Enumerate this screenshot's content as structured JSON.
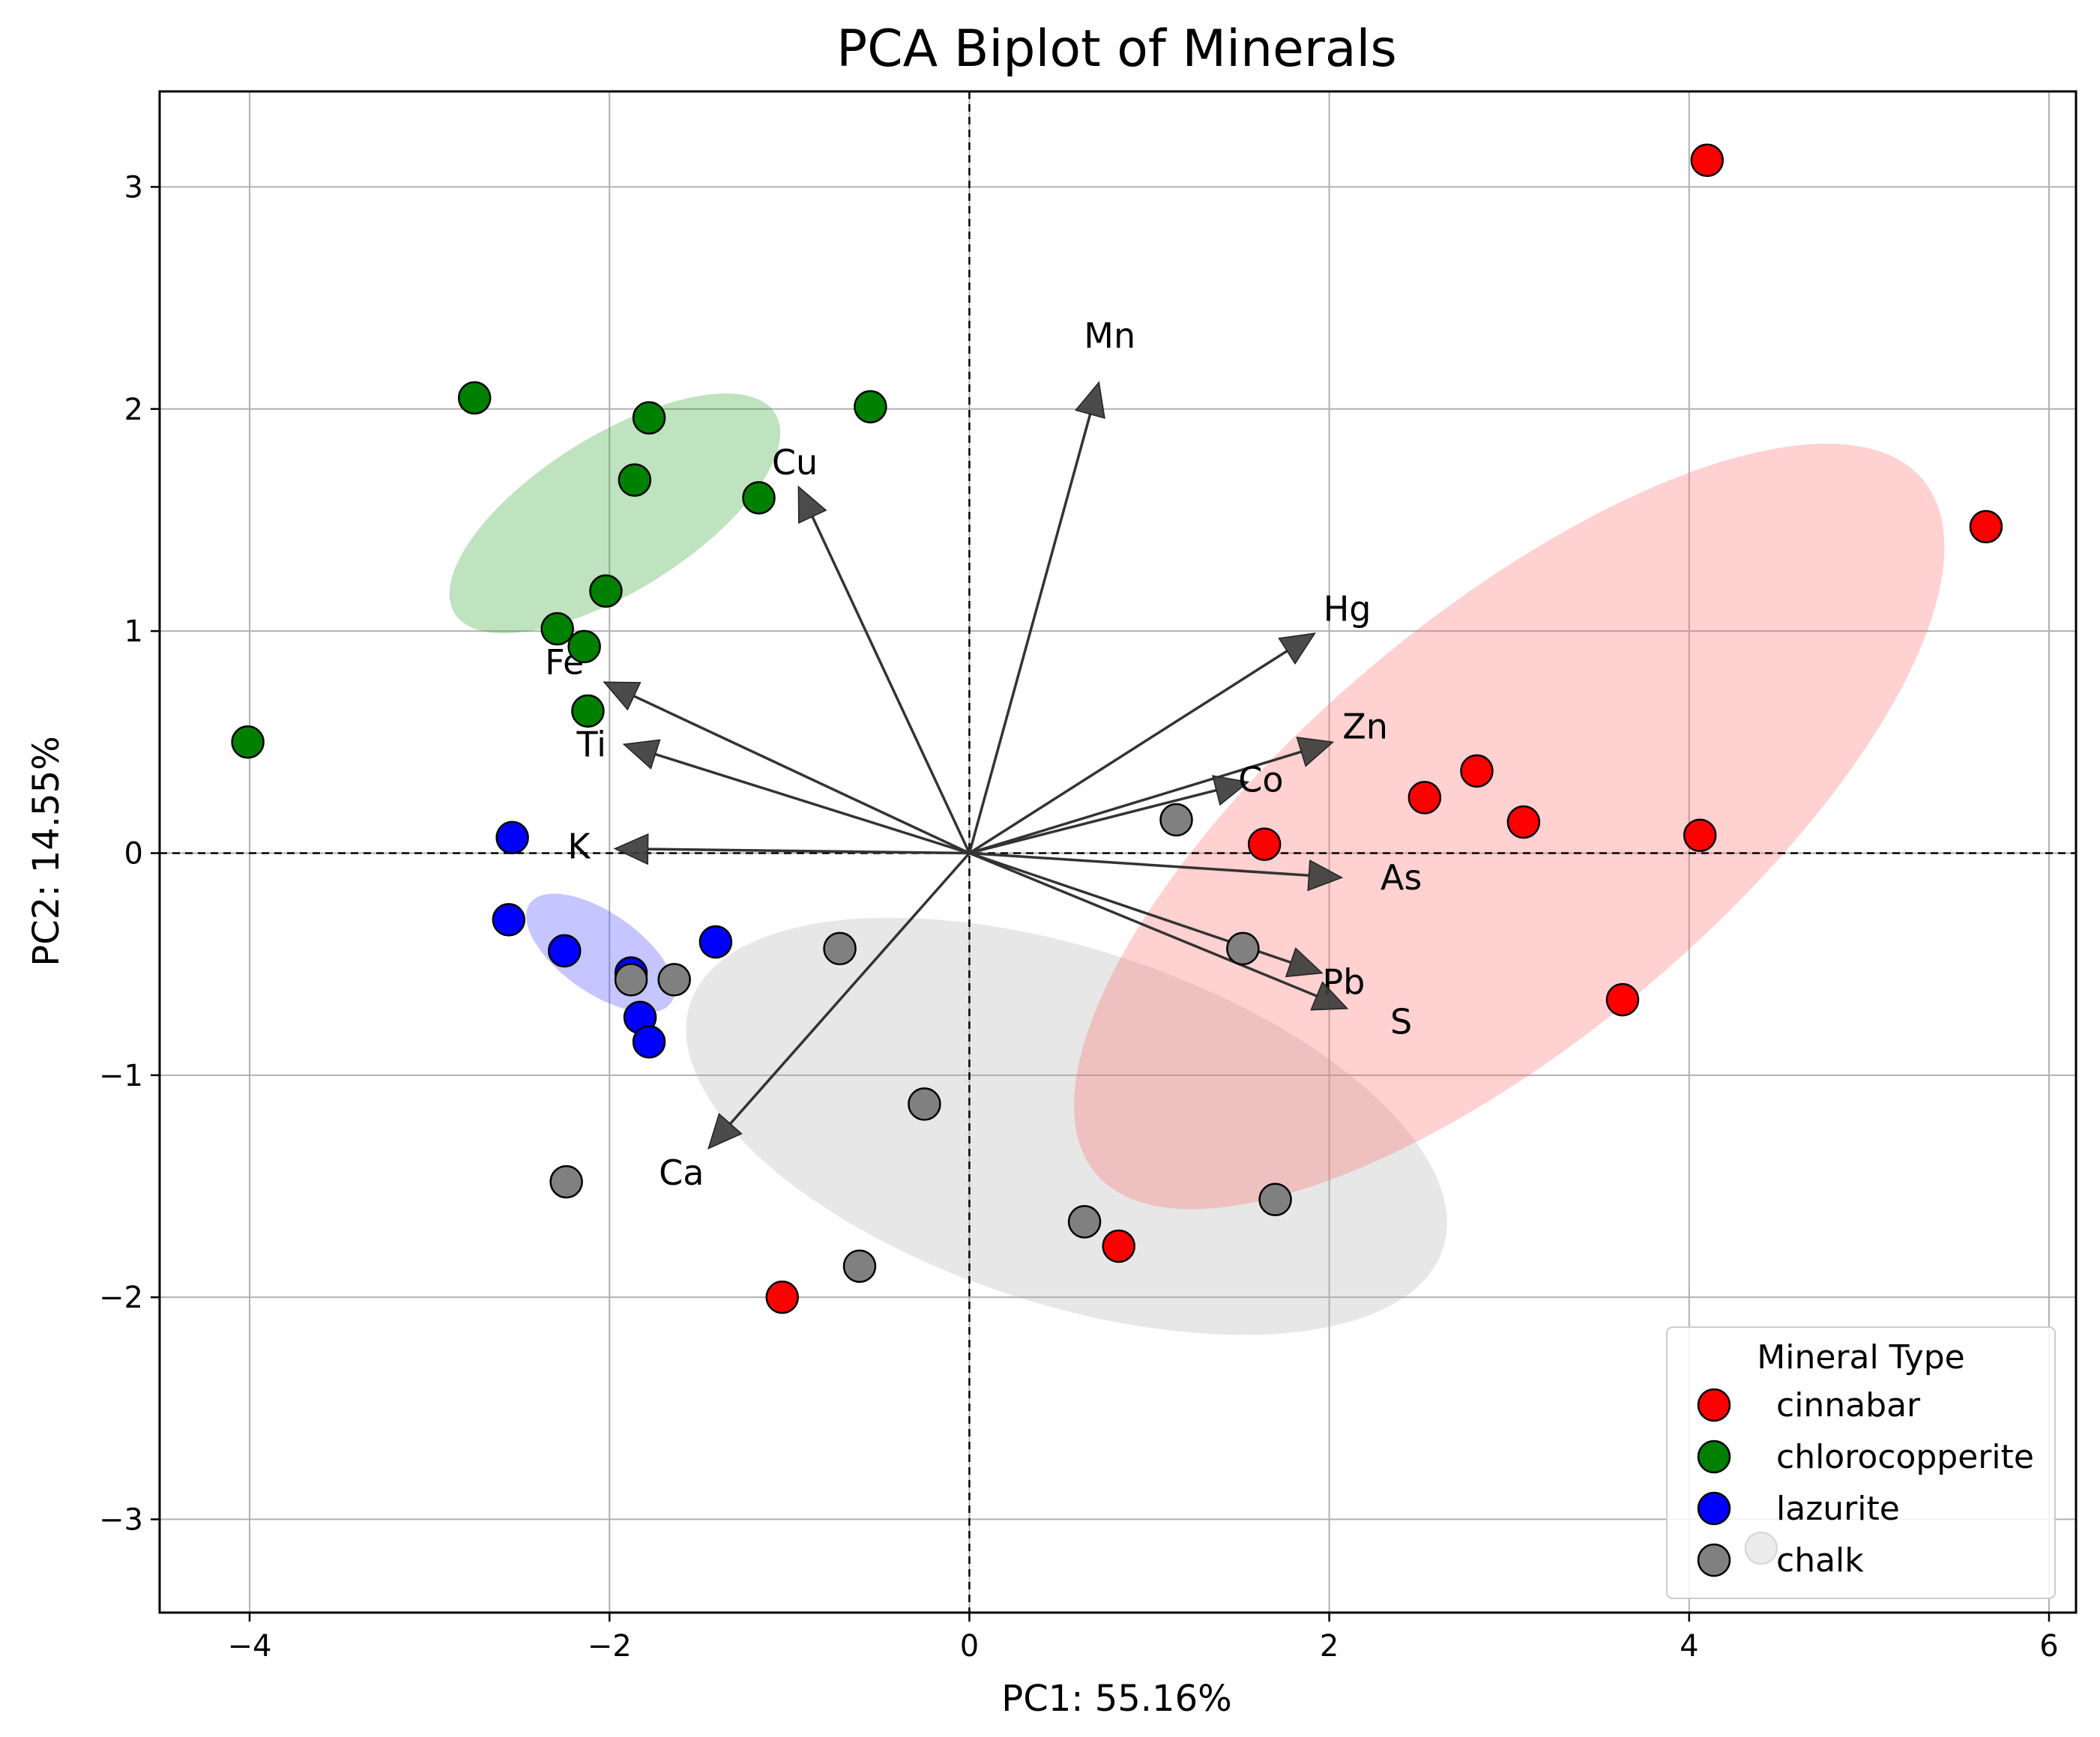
{
  "chart_data": {
    "type": "scatter",
    "title": "PCA Biplot of Minerals",
    "xlabel": "PC1: 55.16%",
    "ylabel": "PC2: 14.55%",
    "xlim": [
      -4.5,
      6.15
    ],
    "ylim": [
      -3.42,
      3.43
    ],
    "xticks": [
      -4,
      -2,
      0,
      2,
      4,
      6
    ],
    "yticks": [
      -3,
      -2,
      -1,
      0,
      1,
      2,
      3
    ],
    "xtick_labels": [
      "−4",
      "−2",
      "0",
      "2",
      "4",
      "6"
    ],
    "ytick_labels": [
      "−3",
      "−2",
      "−1",
      "0",
      "1",
      "2",
      "3"
    ],
    "grid": true,
    "legend": {
      "title": "Mineral Type",
      "position": "bottom-right",
      "entries": [
        "cinnabar",
        "chlorocopperite",
        "lazurite",
        "chalk"
      ]
    },
    "series": [
      {
        "name": "cinnabar",
        "color": "#ff0000",
        "points": [
          [
            4.1,
            3.12
          ],
          [
            5.65,
            1.47
          ],
          [
            2.82,
            0.37
          ],
          [
            2.53,
            0.25
          ],
          [
            3.08,
            0.14
          ],
          [
            4.06,
            0.08
          ],
          [
            1.64,
            0.04
          ],
          [
            3.63,
            -0.66
          ],
          [
            0.83,
            -1.77
          ],
          [
            -1.04,
            -2.0
          ]
        ]
      },
      {
        "name": "chlorocopperite",
        "color": "#008000",
        "points": [
          [
            -2.75,
            2.05
          ],
          [
            -1.78,
            1.96
          ],
          [
            -0.55,
            2.01
          ],
          [
            -1.86,
            1.68
          ],
          [
            -1.17,
            1.6
          ],
          [
            -2.02,
            1.18
          ],
          [
            -2.29,
            1.01
          ],
          [
            -2.14,
            0.93
          ],
          [
            -2.12,
            0.64
          ],
          [
            -4.01,
            0.5
          ]
        ]
      },
      {
        "name": "lazurite",
        "color": "#0000ff",
        "points": [
          [
            -2.54,
            0.07
          ],
          [
            -2.56,
            -0.3
          ],
          [
            -2.25,
            -0.44
          ],
          [
            -1.88,
            -0.54
          ],
          [
            -1.41,
            -0.4
          ],
          [
            -1.83,
            -0.74
          ],
          [
            -1.78,
            -0.85
          ]
        ]
      },
      {
        "name": "chalk",
        "color": "#808080",
        "points": [
          [
            1.15,
            0.15
          ],
          [
            1.52,
            -0.43
          ],
          [
            -0.72,
            -0.43
          ],
          [
            -1.88,
            -0.57
          ],
          [
            -1.64,
            -0.57
          ],
          [
            -0.25,
            -1.13
          ],
          [
            -2.24,
            -1.48
          ],
          [
            0.64,
            -1.66
          ],
          [
            1.7,
            -1.56
          ],
          [
            -0.61,
            -1.86
          ],
          [
            4.4,
            -3.13
          ]
        ]
      }
    ],
    "ellipses": [
      {
        "group": "chlorocopperite",
        "color": "#2ca02c",
        "center": [
          -1.97,
          1.53
        ],
        "semi_axes": [
          1.05,
          0.35
        ],
        "angle_deg": 32
      },
      {
        "group": "lazurite",
        "color": "#4040ff",
        "center": [
          -2.05,
          -0.45
        ],
        "semi_axes": [
          0.48,
          0.18
        ],
        "angle_deg": -35
      },
      {
        "group": "chalk",
        "color": "#b0b0b0",
        "center": [
          0.54,
          -1.23
        ],
        "semi_axes": [
          2.2,
          0.8
        ],
        "angle_deg": -18
      },
      {
        "group": "cinnabar",
        "color": "#ff6666",
        "center": [
          3.0,
          0.12
        ],
        "semi_axes": [
          3.0,
          0.95
        ],
        "angle_deg": 40
      }
    ],
    "loadings": [
      {
        "label": "Mn",
        "x": 0.72,
        "y": 2.12,
        "label_x": 0.78,
        "label_y": 2.33
      },
      {
        "label": "Cu",
        "x": -0.95,
        "y": 1.65,
        "label_x": -0.97,
        "label_y": 1.76
      },
      {
        "label": "Hg",
        "x": 1.92,
        "y": 0.99,
        "label_x": 2.1,
        "label_y": 1.1
      },
      {
        "label": "Zn",
        "x": 2.02,
        "y": 0.5,
        "label_x": 2.2,
        "label_y": 0.57
      },
      {
        "label": "Co",
        "x": 1.55,
        "y": 0.32,
        "label_x": 1.62,
        "label_y": 0.33
      },
      {
        "label": "Fe",
        "x": -2.03,
        "y": 0.77,
        "label_x": -2.25,
        "label_y": 0.86
      },
      {
        "label": "Ti",
        "x": -1.92,
        "y": 0.49,
        "label_x": -2.1,
        "label_y": 0.49
      },
      {
        "label": "K",
        "x": -1.97,
        "y": 0.02,
        "label_x": -2.17,
        "label_y": 0.03
      },
      {
        "label": "As",
        "x": 2.07,
        "y": -0.11,
        "label_x": 2.4,
        "label_y": -0.11
      },
      {
        "label": "Pb",
        "x": 1.96,
        "y": -0.54,
        "label_x": 2.08,
        "label_y": -0.58
      },
      {
        "label": "S",
        "x": 2.1,
        "y": -0.7,
        "label_x": 2.4,
        "label_y": -0.76
      },
      {
        "label": "Ca",
        "x": -1.45,
        "y": -1.33,
        "label_x": -1.6,
        "label_y": -1.44
      }
    ]
  }
}
